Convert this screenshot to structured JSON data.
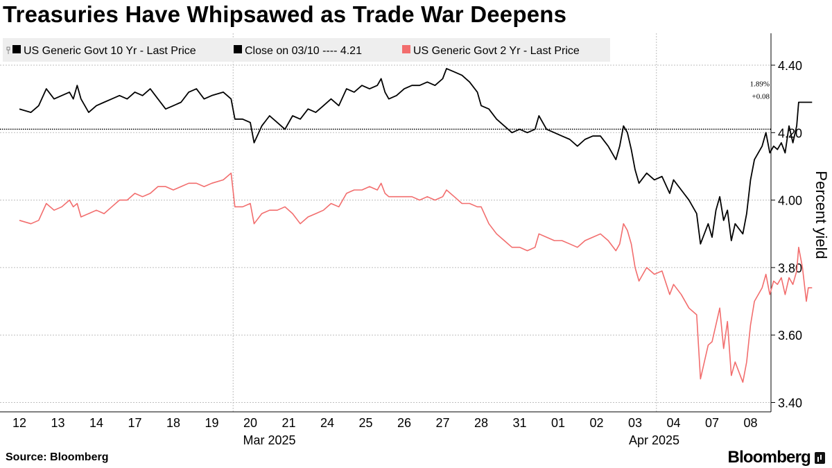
{
  "title": "Treasuries Have Whipsawed as Trade War Deepens",
  "source": "Source: Bloomberg",
  "brand": "Bloomberg",
  "colors": {
    "ten_year": "#000000",
    "two_year": "#f26d6d",
    "grid": "#bdbdbd",
    "legend_bg": "#eeeeee"
  },
  "chart_data": {
    "type": "line",
    "ylabel": "Percent yield",
    "ylim": [
      3.37,
      4.48
    ],
    "yticks": [
      3.4,
      3.6,
      3.8,
      4.0,
      4.2,
      4.4
    ],
    "ytick_labels": [
      "3.40",
      "3.60",
      "3.80",
      "4.00",
      "4.20",
      "4.40"
    ],
    "categories": [
      "12",
      "13",
      "14",
      "17",
      "18",
      "19",
      "20",
      "21",
      "24",
      "25",
      "26",
      "27",
      "28",
      "31",
      "01",
      "02",
      "03",
      "04",
      "07",
      "08"
    ],
    "month_labels": [
      {
        "label": "Mar 2025",
        "at_index": 7
      },
      {
        "label": "Apr 2025",
        "at_index": 17
      }
    ],
    "month_separators_after_index": [
      5,
      16
    ],
    "legend": [
      {
        "marker": "line",
        "label": "US Generic Govt 10 Yr - Last Price"
      },
      {
        "marker": "dotted",
        "label": "Close on 03/10 ---- 4.21"
      },
      {
        "marker": "pink",
        "label": "US Generic Govt 2 Yr - Last Price"
      }
    ],
    "reference_line": {
      "label": "Close on 03/10",
      "value": 4.21
    },
    "last_value_annotation": {
      "top": "1.89%",
      "bottom": "+0.08"
    },
    "series": [
      {
        "name": "US Generic Govt 10 Yr - Last Price",
        "values": [
          [
            0.0,
            4.27
          ],
          [
            0.3,
            4.26
          ],
          [
            0.5,
            4.28
          ],
          [
            0.7,
            4.33
          ],
          [
            0.9,
            4.3
          ],
          [
            1.1,
            4.31
          ],
          [
            1.3,
            4.32
          ],
          [
            1.4,
            4.3
          ],
          [
            1.5,
            4.34
          ],
          [
            1.6,
            4.3
          ],
          [
            1.8,
            4.26
          ],
          [
            2.0,
            4.28
          ],
          [
            2.2,
            4.29
          ],
          [
            2.4,
            4.3
          ],
          [
            2.6,
            4.31
          ],
          [
            2.8,
            4.3
          ],
          [
            3.0,
            4.32
          ],
          [
            3.2,
            4.31
          ],
          [
            3.4,
            4.33
          ],
          [
            3.6,
            4.3
          ],
          [
            3.8,
            4.27
          ],
          [
            4.0,
            4.28
          ],
          [
            4.2,
            4.29
          ],
          [
            4.4,
            4.32
          ],
          [
            4.6,
            4.33
          ],
          [
            4.8,
            4.3
          ],
          [
            5.0,
            4.31
          ],
          [
            5.3,
            4.32
          ],
          [
            5.5,
            4.3
          ],
          [
            5.6,
            4.24
          ],
          [
            5.8,
            4.24
          ],
          [
            6.0,
            4.23
          ],
          [
            6.1,
            4.17
          ],
          [
            6.3,
            4.22
          ],
          [
            6.5,
            4.25
          ],
          [
            6.7,
            4.23
          ],
          [
            6.9,
            4.21
          ],
          [
            7.1,
            4.25
          ],
          [
            7.3,
            4.24
          ],
          [
            7.5,
            4.27
          ],
          [
            7.7,
            4.26
          ],
          [
            7.9,
            4.28
          ],
          [
            8.1,
            4.3
          ],
          [
            8.3,
            4.28
          ],
          [
            8.5,
            4.33
          ],
          [
            8.7,
            4.32
          ],
          [
            8.9,
            4.34
          ],
          [
            9.1,
            4.33
          ],
          [
            9.3,
            4.34
          ],
          [
            9.4,
            4.36
          ],
          [
            9.5,
            4.32
          ],
          [
            9.6,
            4.3
          ],
          [
            9.8,
            4.31
          ],
          [
            10.0,
            4.33
          ],
          [
            10.2,
            4.34
          ],
          [
            10.4,
            4.34
          ],
          [
            10.6,
            4.35
          ],
          [
            10.8,
            4.34
          ],
          [
            11.0,
            4.36
          ],
          [
            11.1,
            4.39
          ],
          [
            11.3,
            4.38
          ],
          [
            11.5,
            4.37
          ],
          [
            11.7,
            4.35
          ],
          [
            11.9,
            4.32
          ],
          [
            12.0,
            4.28
          ],
          [
            12.2,
            4.27
          ],
          [
            12.4,
            4.24
          ],
          [
            12.6,
            4.22
          ],
          [
            12.8,
            4.2
          ],
          [
            13.0,
            4.21
          ],
          [
            13.2,
            4.2
          ],
          [
            13.4,
            4.21
          ],
          [
            13.5,
            4.25
          ],
          [
            13.7,
            4.21
          ],
          [
            13.9,
            4.2
          ],
          [
            14.1,
            4.19
          ],
          [
            14.3,
            4.18
          ],
          [
            14.5,
            4.16
          ],
          [
            14.7,
            4.18
          ],
          [
            14.9,
            4.19
          ],
          [
            15.1,
            4.19
          ],
          [
            15.3,
            4.16
          ],
          [
            15.5,
            4.12
          ],
          [
            15.6,
            4.16
          ],
          [
            15.7,
            4.22
          ],
          [
            15.8,
            4.2
          ],
          [
            15.9,
            4.15
          ],
          [
            16.0,
            4.09
          ],
          [
            16.1,
            4.05
          ],
          [
            16.3,
            4.08
          ],
          [
            16.5,
            4.06
          ],
          [
            16.7,
            4.07
          ],
          [
            16.9,
            4.02
          ],
          [
            17.0,
            4.06
          ],
          [
            17.2,
            4.03
          ],
          [
            17.4,
            4.0
          ],
          [
            17.6,
            3.96
          ],
          [
            17.7,
            3.87
          ],
          [
            17.9,
            3.93
          ],
          [
            18.0,
            3.89
          ],
          [
            18.1,
            3.97
          ],
          [
            18.2,
            4.01
          ],
          [
            18.3,
            3.94
          ],
          [
            18.4,
            3.97
          ],
          [
            18.5,
            3.88
          ],
          [
            18.6,
            3.93
          ],
          [
            18.8,
            3.9
          ],
          [
            18.9,
            3.96
          ],
          [
            19.0,
            4.06
          ],
          [
            19.1,
            4.12
          ],
          [
            19.3,
            4.16
          ],
          [
            19.4,
            4.2
          ],
          [
            19.5,
            4.14
          ],
          [
            19.6,
            4.16
          ],
          [
            19.7,
            4.15
          ],
          [
            19.8,
            4.17
          ],
          [
            19.9,
            4.14
          ],
          [
            20.0,
            4.22
          ],
          [
            20.1,
            4.17
          ],
          [
            20.2,
            4.22
          ],
          [
            20.25,
            4.29
          ],
          [
            20.6,
            4.29
          ]
        ]
      },
      {
        "name": "US Generic Govt 2 Yr - Last Price",
        "values": [
          [
            0.0,
            3.94
          ],
          [
            0.3,
            3.93
          ],
          [
            0.5,
            3.94
          ],
          [
            0.7,
            3.99
          ],
          [
            0.9,
            3.97
          ],
          [
            1.1,
            3.98
          ],
          [
            1.3,
            4.0
          ],
          [
            1.4,
            3.98
          ],
          [
            1.5,
            3.99
          ],
          [
            1.6,
            3.95
          ],
          [
            1.8,
            3.96
          ],
          [
            2.0,
            3.97
          ],
          [
            2.2,
            3.96
          ],
          [
            2.4,
            3.98
          ],
          [
            2.6,
            4.0
          ],
          [
            2.8,
            4.0
          ],
          [
            3.0,
            4.02
          ],
          [
            3.2,
            4.01
          ],
          [
            3.4,
            4.02
          ],
          [
            3.6,
            4.04
          ],
          [
            3.8,
            4.04
          ],
          [
            4.0,
            4.03
          ],
          [
            4.2,
            4.04
          ],
          [
            4.4,
            4.05
          ],
          [
            4.6,
            4.05
          ],
          [
            4.8,
            4.04
          ],
          [
            5.0,
            4.05
          ],
          [
            5.3,
            4.06
          ],
          [
            5.5,
            4.08
          ],
          [
            5.6,
            3.98
          ],
          [
            5.8,
            3.98
          ],
          [
            6.0,
            3.99
          ],
          [
            6.1,
            3.93
          ],
          [
            6.3,
            3.96
          ],
          [
            6.5,
            3.97
          ],
          [
            6.7,
            3.97
          ],
          [
            6.9,
            3.98
          ],
          [
            7.1,
            3.96
          ],
          [
            7.3,
            3.93
          ],
          [
            7.5,
            3.95
          ],
          [
            7.7,
            3.96
          ],
          [
            7.9,
            3.97
          ],
          [
            8.1,
            3.99
          ],
          [
            8.3,
            3.98
          ],
          [
            8.5,
            4.02
          ],
          [
            8.7,
            4.03
          ],
          [
            8.9,
            4.03
          ],
          [
            9.1,
            4.04
          ],
          [
            9.3,
            4.03
          ],
          [
            9.4,
            4.05
          ],
          [
            9.5,
            4.02
          ],
          [
            9.6,
            4.01
          ],
          [
            9.8,
            4.01
          ],
          [
            10.0,
            4.01
          ],
          [
            10.2,
            4.01
          ],
          [
            10.4,
            4.0
          ],
          [
            10.6,
            4.01
          ],
          [
            10.8,
            4.0
          ],
          [
            11.0,
            4.01
          ],
          [
            11.1,
            4.03
          ],
          [
            11.3,
            4.01
          ],
          [
            11.5,
            3.99
          ],
          [
            11.7,
            3.99
          ],
          [
            11.9,
            3.98
          ],
          [
            12.0,
            3.98
          ],
          [
            12.2,
            3.93
          ],
          [
            12.4,
            3.9
          ],
          [
            12.6,
            3.88
          ],
          [
            12.8,
            3.86
          ],
          [
            13.0,
            3.86
          ],
          [
            13.2,
            3.85
          ],
          [
            13.4,
            3.86
          ],
          [
            13.5,
            3.9
          ],
          [
            13.7,
            3.89
          ],
          [
            13.9,
            3.88
          ],
          [
            14.1,
            3.88
          ],
          [
            14.3,
            3.87
          ],
          [
            14.5,
            3.86
          ],
          [
            14.7,
            3.88
          ],
          [
            14.9,
            3.89
          ],
          [
            15.1,
            3.9
          ],
          [
            15.3,
            3.88
          ],
          [
            15.5,
            3.85
          ],
          [
            15.6,
            3.87
          ],
          [
            15.7,
            3.93
          ],
          [
            15.8,
            3.91
          ],
          [
            15.9,
            3.87
          ],
          [
            16.0,
            3.8
          ],
          [
            16.1,
            3.76
          ],
          [
            16.3,
            3.8
          ],
          [
            16.5,
            3.78
          ],
          [
            16.7,
            3.79
          ],
          [
            16.9,
            3.72
          ],
          [
            17.0,
            3.75
          ],
          [
            17.2,
            3.72
          ],
          [
            17.4,
            3.68
          ],
          [
            17.6,
            3.66
          ],
          [
            17.7,
            3.47
          ],
          [
            17.9,
            3.57
          ],
          [
            18.0,
            3.58
          ],
          [
            18.1,
            3.63
          ],
          [
            18.2,
            3.68
          ],
          [
            18.3,
            3.56
          ],
          [
            18.4,
            3.64
          ],
          [
            18.5,
            3.48
          ],
          [
            18.6,
            3.52
          ],
          [
            18.8,
            3.46
          ],
          [
            18.9,
            3.52
          ],
          [
            19.0,
            3.63
          ],
          [
            19.1,
            3.7
          ],
          [
            19.3,
            3.74
          ],
          [
            19.4,
            3.78
          ],
          [
            19.5,
            3.72
          ],
          [
            19.6,
            3.76
          ],
          [
            19.7,
            3.75
          ],
          [
            19.8,
            3.77
          ],
          [
            19.9,
            3.72
          ],
          [
            20.0,
            3.77
          ],
          [
            20.1,
            3.75
          ],
          [
            20.2,
            3.79
          ],
          [
            20.25,
            3.86
          ],
          [
            20.35,
            3.8
          ],
          [
            20.45,
            3.7
          ],
          [
            20.5,
            3.74
          ],
          [
            20.6,
            3.74
          ]
        ]
      }
    ]
  }
}
